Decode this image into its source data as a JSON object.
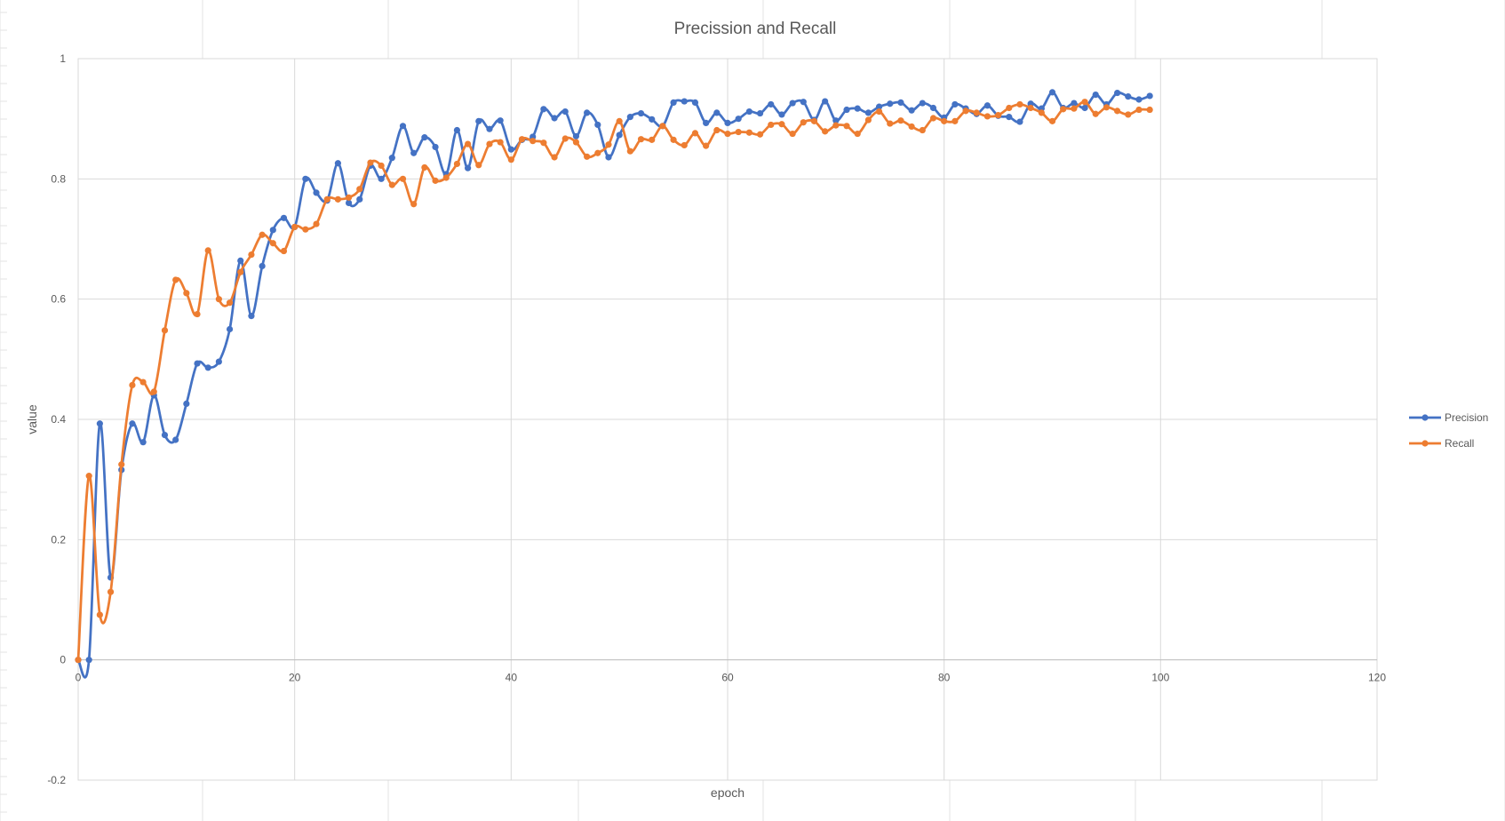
{
  "chart_data": {
    "type": "line",
    "title": "Precission and Recall",
    "xlabel": "epoch",
    "ylabel": "value",
    "xlim": [
      0,
      120
    ],
    "ylim": [
      -0.2,
      1
    ],
    "x_ticks": [
      0,
      20,
      40,
      60,
      80,
      100,
      120
    ],
    "y_ticks": [
      -0.2,
      0,
      0.2,
      0.4,
      0.6,
      0.8,
      1
    ],
    "y_tick_labels": [
      "-0.2",
      "0",
      "0.2",
      "0.4",
      "0.6",
      "0.8",
      "1"
    ],
    "grid": true,
    "smoothed": true,
    "legend": "right",
    "x": [
      0,
      1,
      2,
      3,
      4,
      5,
      6,
      7,
      8,
      9,
      10,
      11,
      12,
      13,
      14,
      15,
      16,
      17,
      18,
      19,
      20,
      21,
      22,
      23,
      24,
      25,
      26,
      27,
      28,
      29,
      30,
      31,
      32,
      33,
      34,
      35,
      36,
      37,
      38,
      39,
      40,
      41,
      42,
      43,
      44,
      45,
      46,
      47,
      48,
      49,
      50,
      51,
      52,
      53,
      54,
      55,
      56,
      57,
      58,
      59,
      60,
      61,
      62,
      63,
      64,
      65,
      66,
      67,
      68,
      69,
      70,
      71,
      72,
      73,
      74,
      75,
      76,
      77,
      78,
      79,
      80,
      81,
      82,
      83,
      84,
      85,
      86,
      87,
      88,
      89,
      90,
      91,
      92,
      93,
      94,
      95,
      96,
      97,
      98,
      99
    ],
    "series": [
      {
        "name": "Precision",
        "color": "#4472C4",
        "values": [
          0,
          0,
          0.393,
          0.137,
          0.316,
          0.393,
          0.362,
          0.44,
          0.374,
          0.366,
          0.426,
          0.493,
          0.486,
          0.496,
          0.55,
          0.664,
          0.572,
          0.655,
          0.715,
          0.735,
          0.72,
          0.8,
          0.777,
          0.764,
          0.826,
          0.76,
          0.766,
          0.822,
          0.8,
          0.835,
          0.888,
          0.843,
          0.869,
          0.853,
          0.808,
          0.881,
          0.818,
          0.896,
          0.883,
          0.897,
          0.849,
          0.865,
          0.87,
          0.916,
          0.901,
          0.912,
          0.871,
          0.91,
          0.89,
          0.836,
          0.873,
          0.903,
          0.909,
          0.899,
          0.888,
          0.927,
          0.929,
          0.927,
          0.893,
          0.91,
          0.893,
          0.9,
          0.912,
          0.909,
          0.924,
          0.907,
          0.926,
          0.928,
          0.898,
          0.929,
          0.897,
          0.915,
          0.917,
          0.91,
          0.92,
          0.925,
          0.927,
          0.914,
          0.926,
          0.918,
          0.902,
          0.924,
          0.917,
          0.908,
          0.922,
          0.905,
          0.903,
          0.895,
          0.925,
          0.917,
          0.944,
          0.918,
          0.926,
          0.918,
          0.94,
          0.924,
          0.943,
          0.937,
          0.932,
          0.938
        ]
      },
      {
        "name": "Recall",
        "color": "#ED7D31",
        "values": [
          0,
          0.306,
          0.075,
          0.113,
          0.325,
          0.457,
          0.462,
          0.446,
          0.548,
          0.632,
          0.61,
          0.575,
          0.681,
          0.6,
          0.594,
          0.645,
          0.674,
          0.707,
          0.693,
          0.68,
          0.72,
          0.716,
          0.725,
          0.766,
          0.766,
          0.769,
          0.783,
          0.827,
          0.822,
          0.79,
          0.8,
          0.758,
          0.819,
          0.797,
          0.802,
          0.825,
          0.858,
          0.823,
          0.858,
          0.861,
          0.832,
          0.866,
          0.863,
          0.86,
          0.836,
          0.867,
          0.861,
          0.837,
          0.843,
          0.857,
          0.896,
          0.846,
          0.866,
          0.865,
          0.888,
          0.865,
          0.856,
          0.876,
          0.855,
          0.881,
          0.875,
          0.878,
          0.877,
          0.874,
          0.89,
          0.891,
          0.875,
          0.894,
          0.896,
          0.879,
          0.889,
          0.888,
          0.875,
          0.898,
          0.912,
          0.892,
          0.897,
          0.887,
          0.881,
          0.901,
          0.896,
          0.896,
          0.913,
          0.91,
          0.904,
          0.906,
          0.918,
          0.924,
          0.918,
          0.91,
          0.896,
          0.916,
          0.917,
          0.928,
          0.908,
          0.919,
          0.913,
          0.907,
          0.915,
          0.915
        ]
      }
    ]
  }
}
